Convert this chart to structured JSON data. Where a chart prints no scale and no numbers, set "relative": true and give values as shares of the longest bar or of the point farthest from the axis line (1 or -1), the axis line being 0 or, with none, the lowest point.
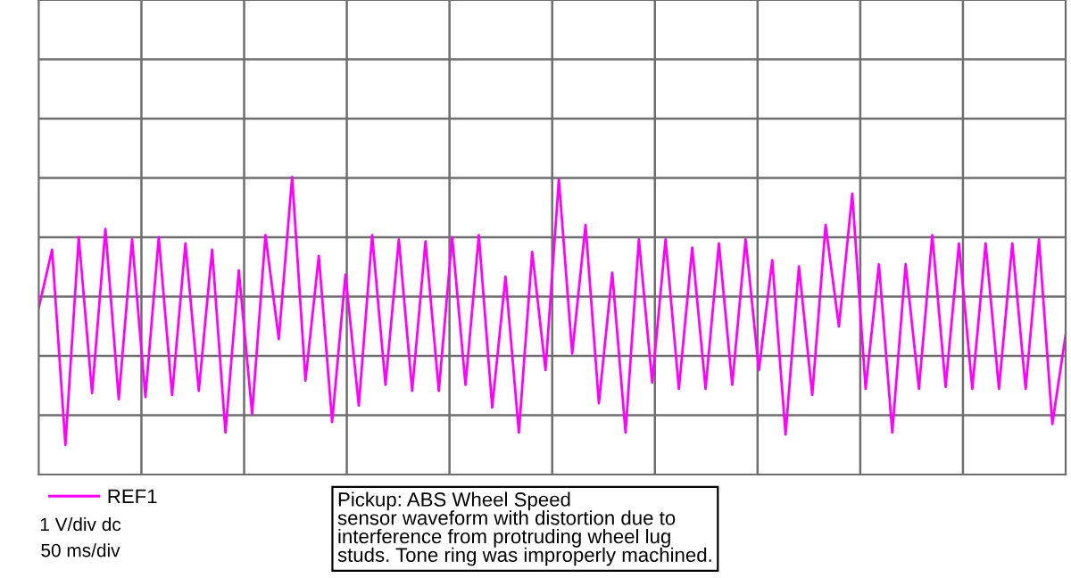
{
  "chart_data": {
    "type": "line",
    "relative": true,
    "categories": [
      null,
      null,
      null,
      null,
      null,
      null,
      null,
      null,
      null,
      null,
      null,
      null,
      null,
      null,
      null,
      null,
      null,
      null,
      null,
      null,
      null,
      null,
      null,
      null,
      null,
      null,
      null,
      null,
      null,
      null,
      null,
      null,
      null,
      null,
      null,
      null,
      null,
      null,
      null,
      null,
      null,
      null,
      null,
      null,
      null,
      null,
      null,
      null,
      null,
      null,
      null,
      null,
      null,
      null,
      null,
      null,
      null,
      null,
      null,
      null,
      null,
      null,
      null,
      null,
      null,
      null,
      null,
      null,
      null,
      null,
      null,
      null,
      null,
      null,
      null,
      null,
      null,
      null
    ],
    "grid": true,
    "legend": "bottom left",
    "marker": "none",
    "line_style": "solid",
    "series": [
      {
        "name": "REF1",
        "color": "#ff00ff",
        "values": [
          -0.34,
          -0.06,
          -1.0,
          0.0,
          -0.75,
          0.04,
          -0.78,
          -0.01,
          -0.77,
          0.0,
          -0.76,
          -0.03,
          -0.74,
          -0.06,
          -0.94,
          -0.16,
          -0.85,
          0.01,
          -0.49,
          0.29,
          -0.69,
          -0.09,
          -0.89,
          -0.18,
          -0.81,
          0.01,
          -0.71,
          -0.01,
          -0.74,
          -0.02,
          -0.74,
          0.0,
          -0.71,
          0.01,
          -0.82,
          -0.19,
          -0.94,
          -0.07,
          -0.64,
          0.28,
          -0.56,
          0.06,
          -0.8,
          -0.17,
          -0.94,
          -0.01,
          -0.7,
          -0.01,
          -0.73,
          -0.05,
          -0.73,
          -0.03,
          -0.71,
          -0.01,
          -0.64,
          -0.11,
          -0.95,
          -0.14,
          -0.76,
          0.06,
          -0.43,
          0.21,
          -0.73,
          -0.13,
          -0.94,
          -0.13,
          -0.73,
          0.01,
          -0.72,
          -0.03,
          -0.73,
          -0.03,
          -0.73,
          -0.03,
          -0.73,
          -0.01,
          -0.9,
          -0.47
        ]
      }
    ],
    "annotations": [
      "1 V/div dc",
      "50 ms/div",
      "Pickup: ABS Wheel Speed\nsensor waveform with distortion due to\ninterference from protruding wheel lug\nstuds. Tone ring was improperly machined."
    ]
  }
}
